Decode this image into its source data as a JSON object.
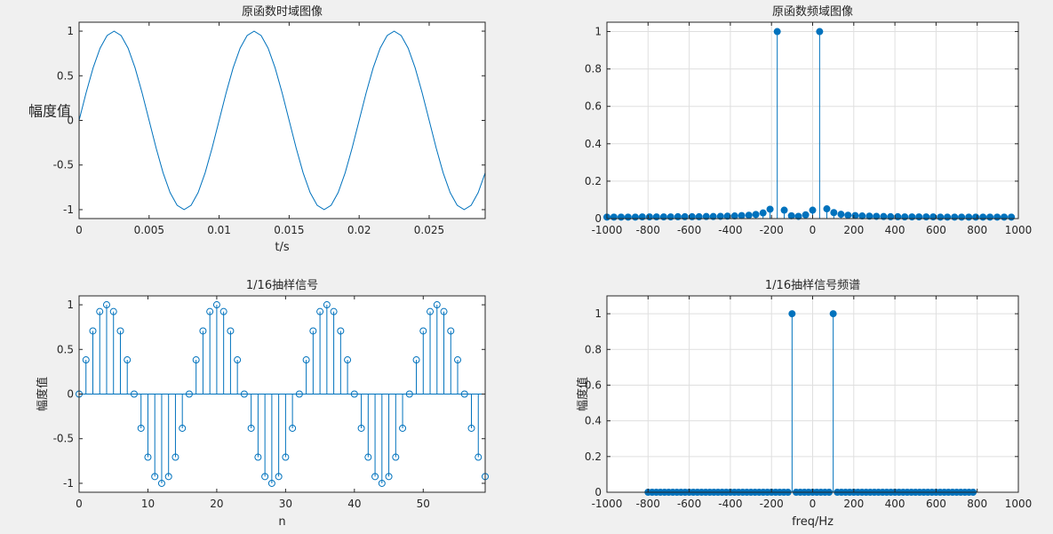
{
  "chart_data": [
    {
      "type": "line",
      "title": "原函数时域图像",
      "xlabel": "t/s",
      "ylabel": "幅度值",
      "xlim": [
        0,
        0.029
      ],
      "ylim": [
        -1.1,
        1.1
      ],
      "xticks": [
        "0",
        "0.005",
        "0.01",
        "0.015",
        "0.02",
        "0.025"
      ],
      "yticks": [
        "-1",
        "-0.5",
        "0",
        "0.5",
        "1"
      ],
      "grid": false,
      "series": [
        {
          "signal": "sin",
          "frequency": 100,
          "amplitude": 1,
          "t_start": 0,
          "t_end": 0.029,
          "samples": 59
        }
      ]
    },
    {
      "type": "stem",
      "title": "原函数频域图像",
      "xlabel": "",
      "ylabel": "",
      "xlim": [
        -1000,
        1000
      ],
      "ylim": [
        0,
        1.05
      ],
      "xticks": [
        "-1000",
        "-800",
        "-600",
        "-400",
        "-200",
        "0",
        "200",
        "400",
        "600",
        "800",
        "1000"
      ],
      "yticks": [
        "0",
        "0.2",
        "0.4",
        "0.6",
        "0.8",
        "1"
      ],
      "grid": true,
      "marker": "filled",
      "x": [
        -1000,
        -966,
        -931,
        -897,
        -862,
        -828,
        -793,
        -759,
        -724,
        -690,
        -655,
        -621,
        -586,
        -552,
        -517,
        -483,
        -448,
        -414,
        -379,
        -345,
        -310,
        -276,
        -241,
        -207,
        -172,
        -138,
        -103,
        -69,
        -34,
        0,
        34,
        69,
        103,
        138,
        172,
        207,
        241,
        276,
        310,
        345,
        379,
        414,
        448,
        483,
        517,
        552,
        586,
        621,
        655,
        690,
        724,
        759,
        793,
        828,
        862,
        897,
        931,
        966
      ],
      "values": [
        0.008,
        0.008,
        0.008,
        0.008,
        0.008,
        0.009,
        0.009,
        0.009,
        0.009,
        0.009,
        0.01,
        0.01,
        0.01,
        0.01,
        0.011,
        0.011,
        0.012,
        0.013,
        0.014,
        0.016,
        0.018,
        0.022,
        0.03,
        0.05,
        1.0,
        0.045,
        0.015,
        0.012,
        0.02,
        0.045,
        1.0,
        0.052,
        0.032,
        0.023,
        0.018,
        0.016,
        0.014,
        0.013,
        0.012,
        0.011,
        0.01,
        0.01,
        0.009,
        0.009,
        0.009,
        0.009,
        0.009,
        0.008,
        0.008,
        0.008,
        0.008,
        0.008,
        0.008,
        0.008,
        0.008,
        0.008,
        0.008,
        0.008
      ]
    },
    {
      "type": "stem",
      "title": "1/16抽样信号",
      "xlabel": "n",
      "ylabel": "幅度值",
      "xlim": [
        0,
        59
      ],
      "ylim": [
        -1.1,
        1.1
      ],
      "xticks": [
        "0",
        "10",
        "20",
        "30",
        "40",
        "50"
      ],
      "yticks": [
        "-1",
        "-0.5",
        "0",
        "0.5",
        "1"
      ],
      "grid": false,
      "marker": "hollow",
      "values": [
        0,
        0.383,
        0.707,
        0.924,
        1,
        0.924,
        0.707,
        0.383,
        0,
        -0.383,
        -0.707,
        -0.924,
        -1,
        -0.924,
        -0.707,
        -0.383,
        0,
        0.383,
        0.707,
        0.924,
        1,
        0.924,
        0.707,
        0.383,
        0,
        -0.383,
        -0.707,
        -0.924,
        -1,
        -0.924,
        -0.707,
        -0.383,
        0,
        0.383,
        0.707,
        0.924,
        1,
        0.924,
        0.707,
        0.383,
        0,
        -0.383,
        -0.707,
        -0.924,
        -1,
        -0.924,
        -0.707,
        -0.383,
        0,
        0.383,
        0.707,
        0.924,
        1,
        0.924,
        0.707,
        0.383,
        0,
        -0.383,
        -0.707,
        -0.924
      ]
    },
    {
      "type": "stem",
      "title": "1/16抽样信号频谱",
      "xlabel": "freq/Hz",
      "ylabel": "幅度值",
      "xlim": [
        -1000,
        1000
      ],
      "ylim": [
        0,
        1.1
      ],
      "xticks": [
        "-1000",
        "-800",
        "-600",
        "-400",
        "-200",
        "0",
        "200",
        "400",
        "600",
        "800",
        "1000"
      ],
      "yticks": [
        "0",
        "0.2",
        "0.4",
        "0.6",
        "0.8",
        "1"
      ],
      "grid": true,
      "marker": "filled",
      "x": [
        -800,
        -780,
        -760,
        -740,
        -720,
        -700,
        -680,
        -660,
        -640,
        -620,
        -600,
        -580,
        -560,
        -540,
        -520,
        -500,
        -480,
        -460,
        -440,
        -420,
        -400,
        -380,
        -360,
        -340,
        -320,
        -300,
        -280,
        -260,
        -240,
        -220,
        -200,
        -180,
        -160,
        -140,
        -120,
        -100,
        -80,
        -60,
        -40,
        -20,
        0,
        20,
        40,
        60,
        80,
        100,
        120,
        140,
        160,
        180,
        200,
        220,
        240,
        260,
        280,
        300,
        320,
        340,
        360,
        380,
        400,
        420,
        440,
        460,
        480,
        500,
        520,
        540,
        560,
        580,
        600,
        620,
        640,
        660,
        680,
        700,
        720,
        740,
        760,
        780
      ],
      "values": [
        0,
        0,
        0,
        0,
        0,
        0,
        0,
        0,
        0,
        0,
        0,
        0,
        0,
        0,
        0,
        0,
        0,
        0,
        0,
        0,
        0,
        0,
        0,
        0,
        0,
        0,
        0,
        0,
        0,
        0,
        0,
        0,
        0,
        0,
        0,
        1,
        0,
        0,
        0,
        0,
        0,
        0,
        0,
        0,
        0,
        1,
        0,
        0,
        0,
        0,
        0,
        0,
        0,
        0,
        0,
        0,
        0,
        0,
        0,
        0,
        0,
        0,
        0,
        0,
        0,
        0,
        0,
        0,
        0,
        0,
        0,
        0,
        0,
        0,
        0,
        0,
        0,
        0,
        0,
        0
      ]
    }
  ],
  "colors": {
    "series": "#0072bd",
    "grid": "#dfdfdf",
    "axis": "#262626",
    "figure_bg": "#f0f0f0",
    "axes_bg": "#ffffff"
  }
}
